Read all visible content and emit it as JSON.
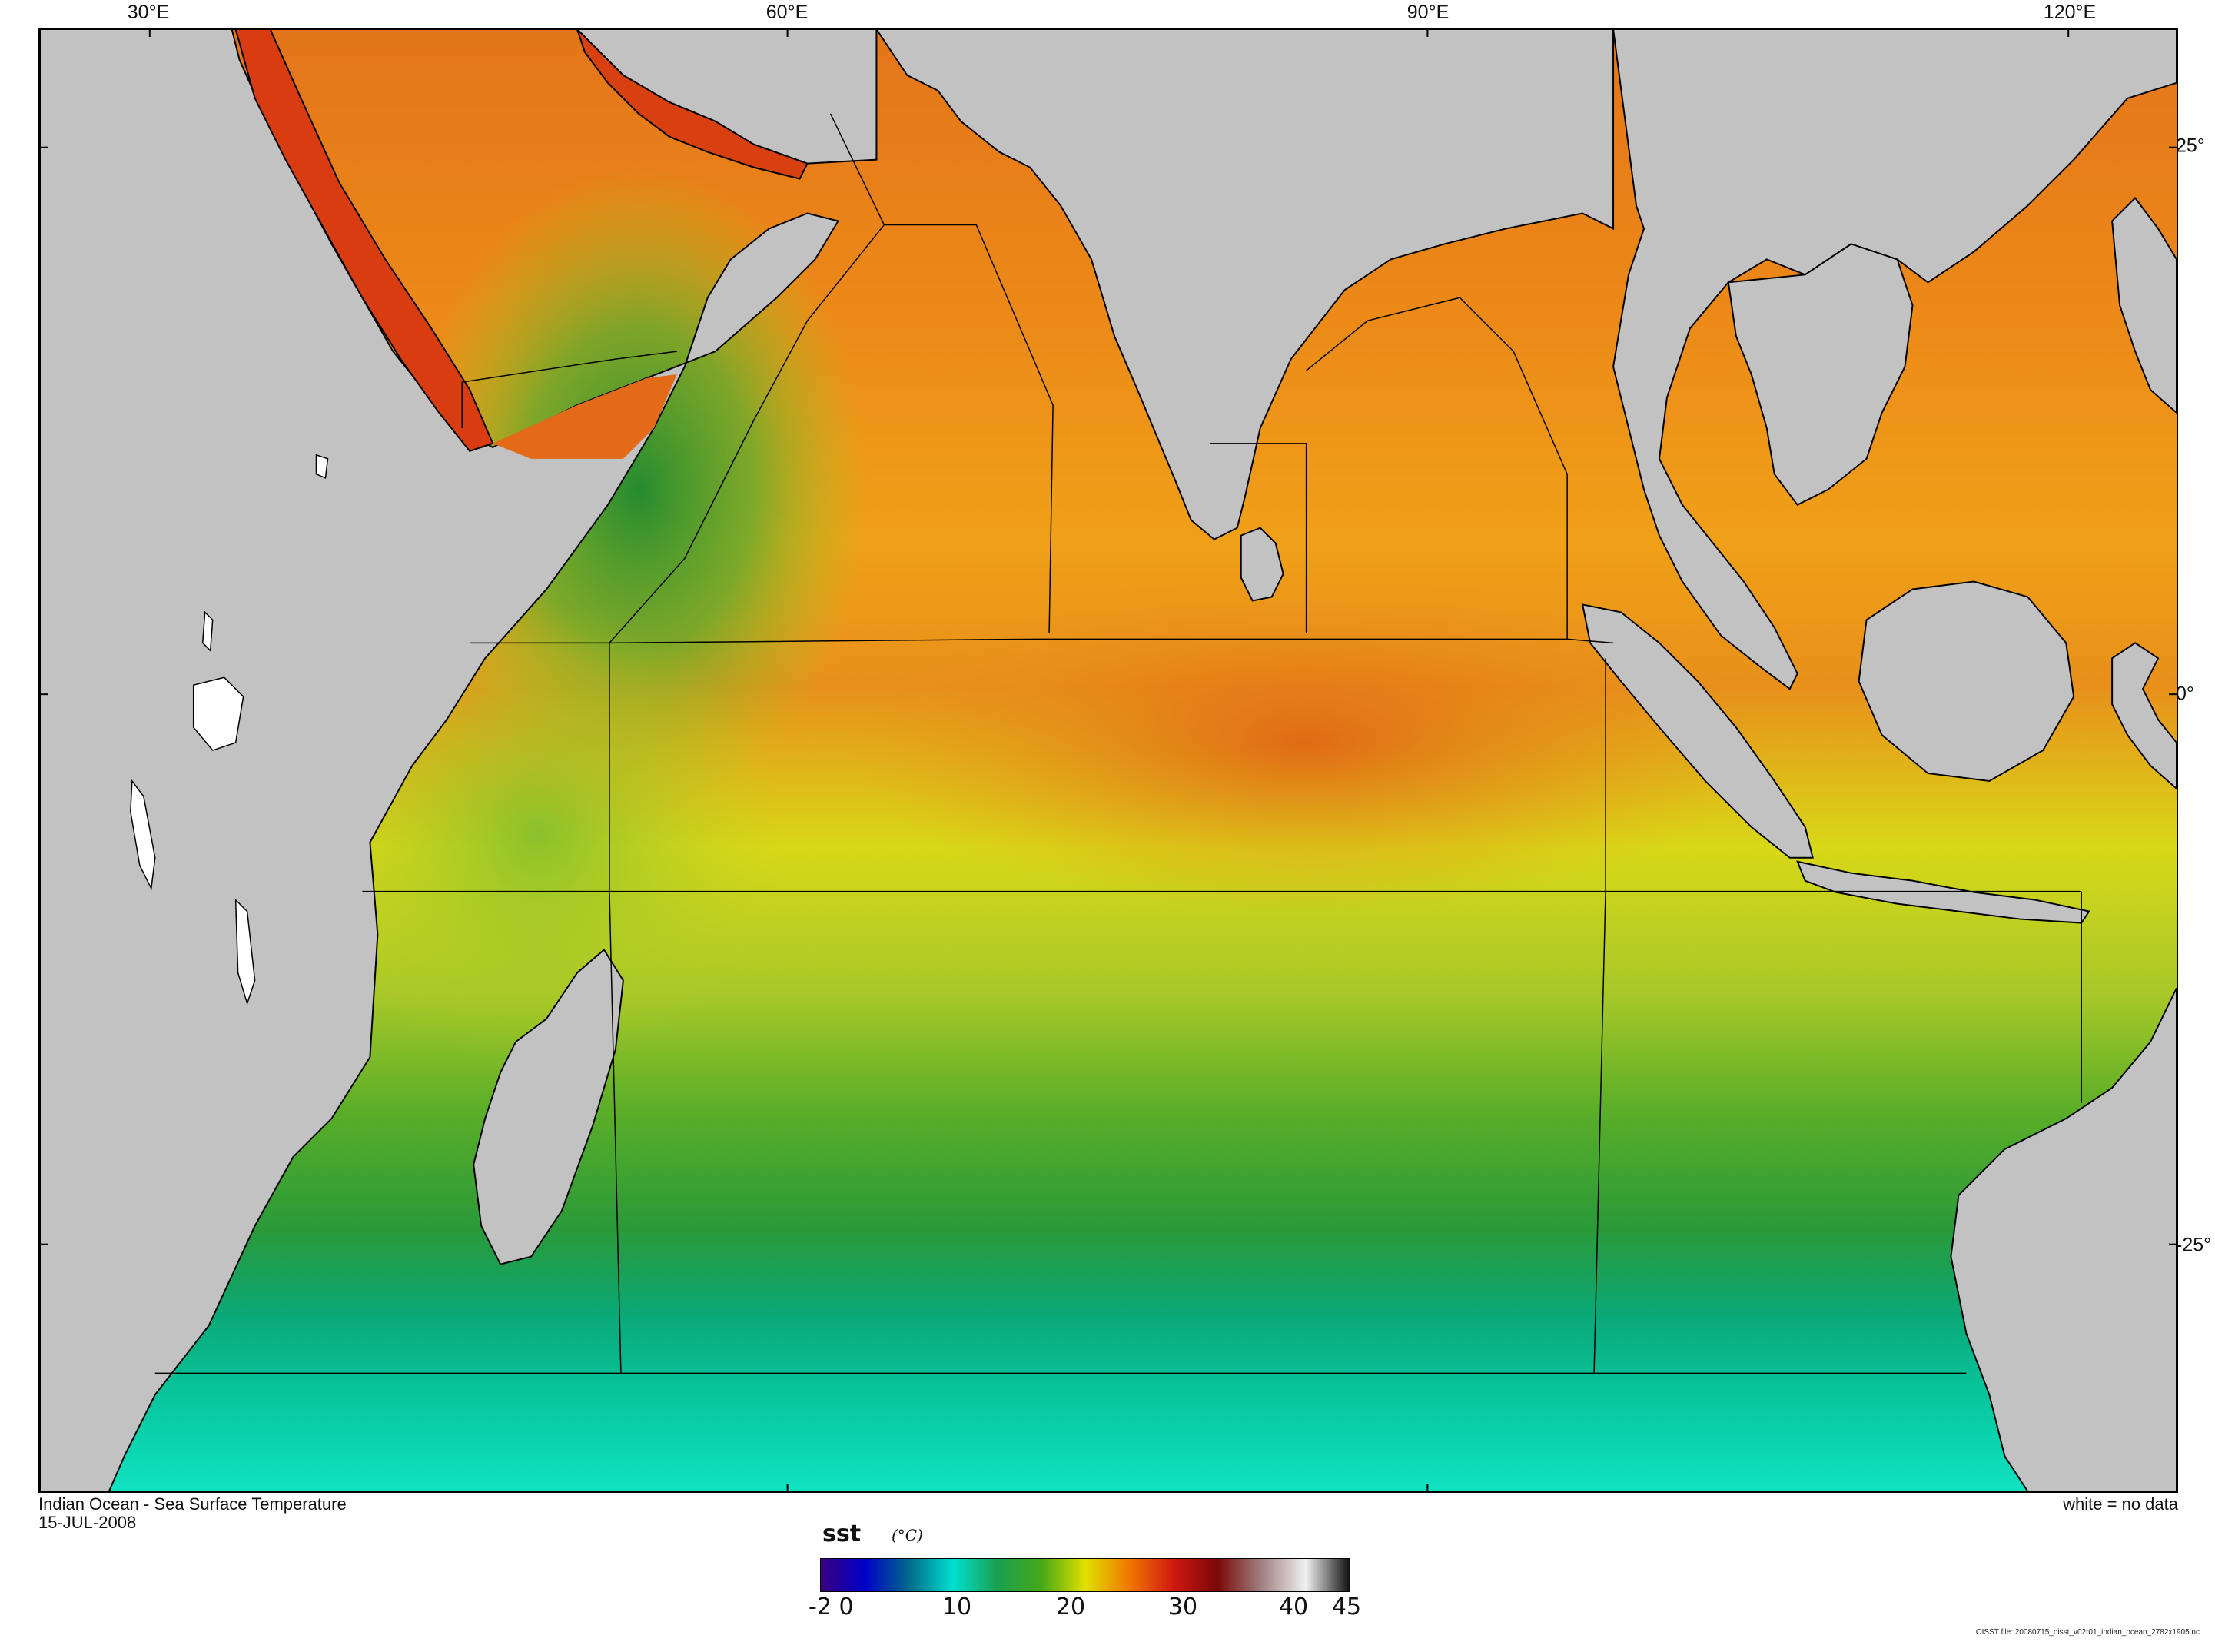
{
  "map": {
    "title": "Indian Ocean - Sea Surface Temperature",
    "date": "15-JUL-2008",
    "no_data_note": "white = no data",
    "longitude_labels": [
      "30°E",
      "60°E",
      "90°E",
      "120°E"
    ],
    "latitude_labels": [
      "25°",
      "0°",
      "-25°"
    ],
    "land_color": "#c2c2c2",
    "no_data_color": "#ffffff",
    "coastline_color": "#000000"
  },
  "colorbar": {
    "variable": "sst",
    "units": "(°C)",
    "range": [
      -2,
      45
    ],
    "tick_labels": [
      "-2",
      "0",
      "10",
      "20",
      "30",
      "40",
      "45"
    ],
    "colors": [
      "#3a0080",
      "#0000c8",
      "#006a8a",
      "#00e0d0",
      "#1aa050",
      "#45a818",
      "#e0e000",
      "#f07800",
      "#d01810",
      "#7a0808",
      "#a08080",
      "#f0f0f0",
      "#101010"
    ]
  },
  "file_info": "OISST file: 20080715_oisst_v02r01_indian_ocean_2782x1905.nc"
}
